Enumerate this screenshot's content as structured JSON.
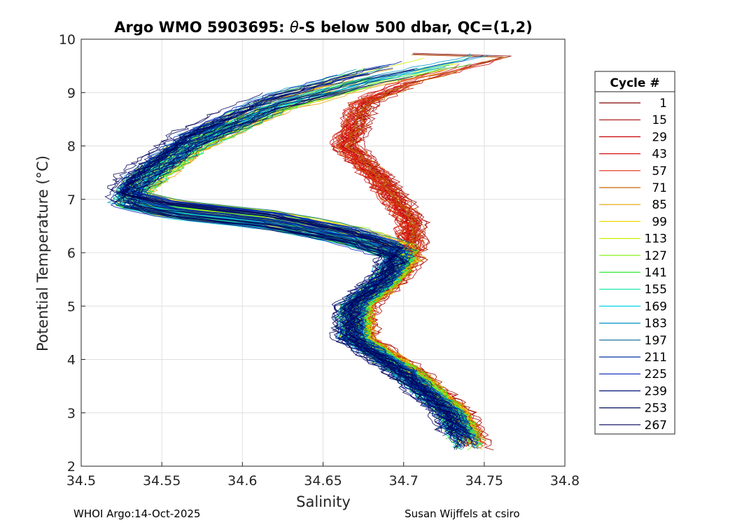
{
  "chart_data": {
    "type": "line",
    "title_prefix": "Argo WMO 5903695: ",
    "title_theta": "θ",
    "title_suffix": "-S below 500 dbar,  QC=(1,2)",
    "xlabel": "Salinity",
    "ylabel": "Potential Temperature (°C)",
    "xlim": [
      34.5,
      34.8
    ],
    "ylim": [
      2,
      10
    ],
    "xticks": [
      "34.5",
      "34.55",
      "34.6",
      "34.65",
      "34.7",
      "34.75",
      "34.8"
    ],
    "yticks": [
      "2",
      "3",
      "4",
      "5",
      "6",
      "7",
      "8",
      "9",
      "10"
    ],
    "grid": true,
    "legend": {
      "title": "Cycle #",
      "placement": "right",
      "entries": [
        {
          "label": "1",
          "color": "#7f0000"
        },
        {
          "label": "15",
          "color": "#a30000"
        },
        {
          "label": "29",
          "color": "#c80000"
        },
        {
          "label": "43",
          "color": "#d41010"
        },
        {
          "label": "57",
          "color": "#e02d10"
        },
        {
          "label": "71",
          "color": "#c86400"
        },
        {
          "label": "85",
          "color": "#e3a000"
        },
        {
          "label": "99",
          "color": "#f0dc00"
        },
        {
          "label": "113",
          "color": "#c8f000"
        },
        {
          "label": "127",
          "color": "#78f000"
        },
        {
          "label": "141",
          "color": "#28e628"
        },
        {
          "label": "155",
          "color": "#00e6a0"
        },
        {
          "label": "169",
          "color": "#00d2e6"
        },
        {
          "label": "183",
          "color": "#0096c8"
        },
        {
          "label": "197",
          "color": "#006496"
        },
        {
          "label": "211",
          "color": "#0032a0"
        },
        {
          "label": "225",
          "color": "#0019b4"
        },
        {
          "label": "239",
          "color": "#001478"
        },
        {
          "label": "253",
          "color": "#000f5a"
        },
        {
          "label": "267",
          "color": "#00005a"
        }
      ]
    },
    "envelope": {
      "description_points": "representative theta-S path (salinity, potential temperature)",
      "path": [
        [
          34.75,
          9.75
        ],
        [
          34.68,
          9.3
        ],
        [
          34.62,
          8.8
        ],
        [
          34.57,
          8.1
        ],
        [
          34.535,
          7.3
        ],
        [
          34.53,
          7.0
        ],
        [
          34.56,
          6.8
        ],
        [
          34.62,
          6.6
        ],
        [
          34.67,
          6.3
        ],
        [
          34.7,
          6.0
        ],
        [
          34.69,
          5.5
        ],
        [
          34.67,
          5.0
        ],
        [
          34.67,
          4.4
        ],
        [
          34.7,
          3.8
        ],
        [
          34.73,
          3.0
        ],
        [
          34.74,
          2.4
        ]
      ],
      "warm_branch_red": [
        [
          34.76,
          9.7
        ],
        [
          34.7,
          9.2
        ],
        [
          34.67,
          8.8
        ],
        [
          34.66,
          8.0
        ],
        [
          34.68,
          7.4
        ],
        [
          34.69,
          7.0
        ],
        [
          34.7,
          6.6
        ],
        [
          34.7,
          6.0
        ]
      ]
    }
  },
  "footer": {
    "left": "WHOI Argo:14-Oct-2025",
    "right": "Susan Wijffels at csiro"
  }
}
